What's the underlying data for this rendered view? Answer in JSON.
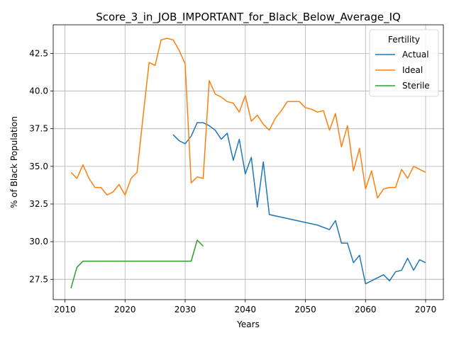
{
  "chart_data": {
    "type": "line",
    "title": "Score_3_in_JOB_IMPORTANT_for_Black_Below_Average_IQ",
    "xlabel": "Years",
    "ylabel": "% of Black Population",
    "xlim": [
      2008.05,
      2072.95
    ],
    "ylim": [
      26.15,
      44.4
    ],
    "xticks": [
      2010,
      2020,
      2030,
      2040,
      2050,
      2060,
      2070
    ],
    "yticks": [
      27.5,
      30.0,
      32.5,
      35.0,
      37.5,
      40.0,
      42.5
    ],
    "grid": true,
    "legend": {
      "title": "Fertility",
      "placement": "top-right"
    },
    "series": [
      {
        "name": "Actual",
        "color": "#1f77b4",
        "x": [
          2028,
          2029,
          2030,
          2031,
          2032,
          2033,
          2034,
          2035,
          2036,
          2037,
          2038,
          2039,
          2040,
          2041,
          2042,
          2043,
          2044,
          2052,
          2054,
          2055,
          2056,
          2057,
          2058,
          2059,
          2060,
          2063,
          2064,
          2065,
          2066,
          2067,
          2068,
          2069,
          2070
        ],
        "values": [
          37.1,
          36.7,
          36.5,
          37.0,
          37.9,
          37.9,
          37.7,
          37.4,
          36.8,
          37.2,
          35.4,
          36.8,
          34.5,
          35.6,
          32.3,
          35.3,
          31.8,
          31.1,
          30.8,
          31.4,
          29.9,
          29.9,
          28.6,
          29.1,
          27.2,
          27.8,
          27.4,
          28.0,
          28.1,
          28.9,
          28.1,
          28.8,
          28.6
        ]
      },
      {
        "name": "Ideal",
        "color": "#ff7f0e",
        "x": [
          2011,
          2012,
          2013,
          2014,
          2015,
          2016,
          2017,
          2018,
          2019,
          2020,
          2021,
          2022,
          2023,
          2024,
          2025,
          2026,
          2027,
          2028,
          2029,
          2030,
          2031,
          2032,
          2033,
          2034,
          2035,
          2036,
          2037,
          2038,
          2039,
          2040,
          2041,
          2042,
          2043,
          2044,
          2045,
          2046,
          2047,
          2048,
          2049,
          2050,
          2051,
          2052,
          2053,
          2054,
          2055,
          2056,
          2057,
          2058,
          2059,
          2060,
          2061,
          2062,
          2063,
          2064,
          2065,
          2066,
          2067,
          2068,
          2069,
          2070
        ],
        "values": [
          34.6,
          34.2,
          35.1,
          34.2,
          33.6,
          33.6,
          33.1,
          33.3,
          33.8,
          33.1,
          34.2,
          34.6,
          38.3,
          41.9,
          41.7,
          43.4,
          43.5,
          43.4,
          42.7,
          41.8,
          33.9,
          34.3,
          34.2,
          40.7,
          39.8,
          39.6,
          39.3,
          39.2,
          38.6,
          39.7,
          38.0,
          38.4,
          37.8,
          37.4,
          38.2,
          38.7,
          39.3,
          39.3,
          39.3,
          38.9,
          38.8,
          38.6,
          38.7,
          37.4,
          38.5,
          36.3,
          37.7,
          34.7,
          36.2,
          33.5,
          34.7,
          32.9,
          33.5,
          33.6,
          33.6,
          34.8,
          34.2,
          35.0,
          34.8,
          34.6
        ]
      },
      {
        "name": "Sterile",
        "color": "#2ca02c",
        "x": [
          2011,
          2012,
          2013,
          2014,
          2015,
          2016,
          2017,
          2018,
          2019,
          2020,
          2021,
          2022,
          2023,
          2024,
          2025,
          2026,
          2027,
          2028,
          2029,
          2030,
          2031,
          2032,
          2033
        ],
        "values": [
          26.9,
          28.3,
          28.7,
          28.7,
          28.7,
          28.7,
          28.7,
          28.7,
          28.7,
          28.7,
          28.7,
          28.7,
          28.7,
          28.7,
          28.7,
          28.7,
          28.7,
          28.7,
          28.7,
          28.7,
          28.7,
          30.1,
          29.7
        ]
      }
    ]
  }
}
